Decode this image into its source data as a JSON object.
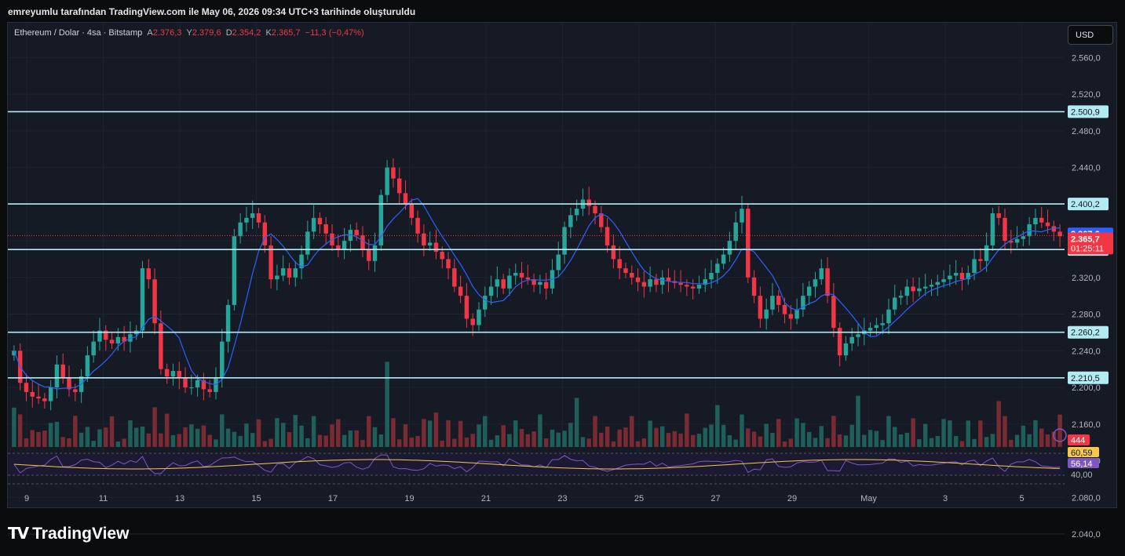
{
  "header_note": "emreyumlu tarafından TradingView.com ile May 06, 2026 09:34 UTC+3 tarihinde oluşturuldu",
  "legend": {
    "symbol": "Ethereum / Dolar · 4sa · Bitstamp",
    "open_label": "A",
    "open_value": "2.376,3",
    "high_label": "Y",
    "high_value": "2.379,6",
    "low_label": "D",
    "low_value": "2.354,2",
    "close_label": "K",
    "close_value": "2.365,7",
    "change": "−11,3 (−0,47%)"
  },
  "currency_button": "USD",
  "footer": {
    "brand": "TradingView"
  },
  "colors": {
    "background": "#161a25",
    "bull": "#26a69a",
    "bear": "#f23645",
    "ma_line": "#2962ff",
    "level_line": "#b2ebf2",
    "rsi_line": "#7e57c2",
    "rsi_ma": "#f7c948"
  },
  "chart_data": {
    "type": "candlestick",
    "title": "Ethereum / Dolar · 4sa · Bitstamp",
    "ylim": [
      2135,
      2580
    ],
    "y_ticks": [
      "2.560,0",
      "2.520,0",
      "2.480,0",
      "2.440,0",
      "2.400,0",
      "2.360,0",
      "2.320,0",
      "2.280,0",
      "2.240,0",
      "2.200,0",
      "2.160,0",
      "2.120,0",
      "2.080,0",
      "2.040,0"
    ],
    "x_ticks": [
      "9",
      "11",
      "13",
      "15",
      "17",
      "19",
      "21",
      "23",
      "25",
      "27",
      "29",
      "May",
      "3",
      "5"
    ],
    "horizontal_levels": [
      {
        "value": 2500.9,
        "label": "2.500,9"
      },
      {
        "value": 2400.2,
        "label": "2.400,2"
      },
      {
        "value": 2350.5,
        "label": "2.350,5"
      },
      {
        "value": 2260.2,
        "label": "2.260,2"
      },
      {
        "value": 2210.5,
        "label": "2.210,5"
      }
    ],
    "price_tags": [
      {
        "value": 2367.6,
        "label": "2.367,6",
        "color": "#2962ff"
      },
      {
        "value": 2365.7,
        "label": "2.365,7",
        "sub": "01:25:11",
        "color": "#f23645"
      }
    ],
    "close_series": [
      2240,
      2205,
      2195,
      2190,
      2188,
      2185,
      2200,
      2225,
      2210,
      2198,
      2195,
      2212,
      2235,
      2250,
      2262,
      2252,
      2248,
      2255,
      2250,
      2258,
      2262,
      2330,
      2318,
      2270,
      2220,
      2212,
      2218,
      2210,
      2200,
      2200,
      2208,
      2198,
      2195,
      2210,
      2250,
      2290,
      2365,
      2380,
      2385,
      2390,
      2380,
      2355,
      2318,
      2322,
      2330,
      2320,
      2330,
      2345,
      2370,
      2385,
      2378,
      2368,
      2355,
      2350,
      2360,
      2372,
      2366,
      2350,
      2338,
      2355,
      2410,
      2440,
      2428,
      2412,
      2400,
      2385,
      2368,
      2355,
      2358,
      2348,
      2340,
      2330,
      2310,
      2300,
      2275,
      2268,
      2285,
      2300,
      2310,
      2318,
      2308,
      2322,
      2325,
      2320,
      2318,
      2312,
      2315,
      2308,
      2328,
      2345,
      2375,
      2388,
      2395,
      2405,
      2398,
      2390,
      2375,
      2355,
      2340,
      2330,
      2325,
      2320,
      2315,
      2310,
      2318,
      2312,
      2320,
      2316,
      2314,
      2312,
      2310,
      2308,
      2312,
      2318,
      2325,
      2335,
      2345,
      2360,
      2380,
      2395,
      2320,
      2300,
      2275,
      2285,
      2300,
      2290,
      2280,
      2275,
      2285,
      2300,
      2310,
      2318,
      2330,
      2300,
      2265,
      2235,
      2248,
      2255,
      2258,
      2262,
      2265,
      2268,
      2270,
      2285,
      2298,
      2300,
      2310,
      2305,
      2308,
      2310,
      2312,
      2315,
      2318,
      2322,
      2325,
      2318,
      2325,
      2340,
      2338,
      2355,
      2390,
      2385,
      2360,
      2358,
      2362,
      2365,
      2378,
      2385,
      2380,
      2376,
      2370,
      2365
    ],
    "volume_max": 5.6,
    "volume_labels": [
      {
        "label": "444",
        "color": "#f23645"
      }
    ],
    "rsi": {
      "levels": [
        "60,59",
        "56,14",
        "40,00"
      ],
      "value": "56,14",
      "ma_value": "60,59"
    }
  }
}
